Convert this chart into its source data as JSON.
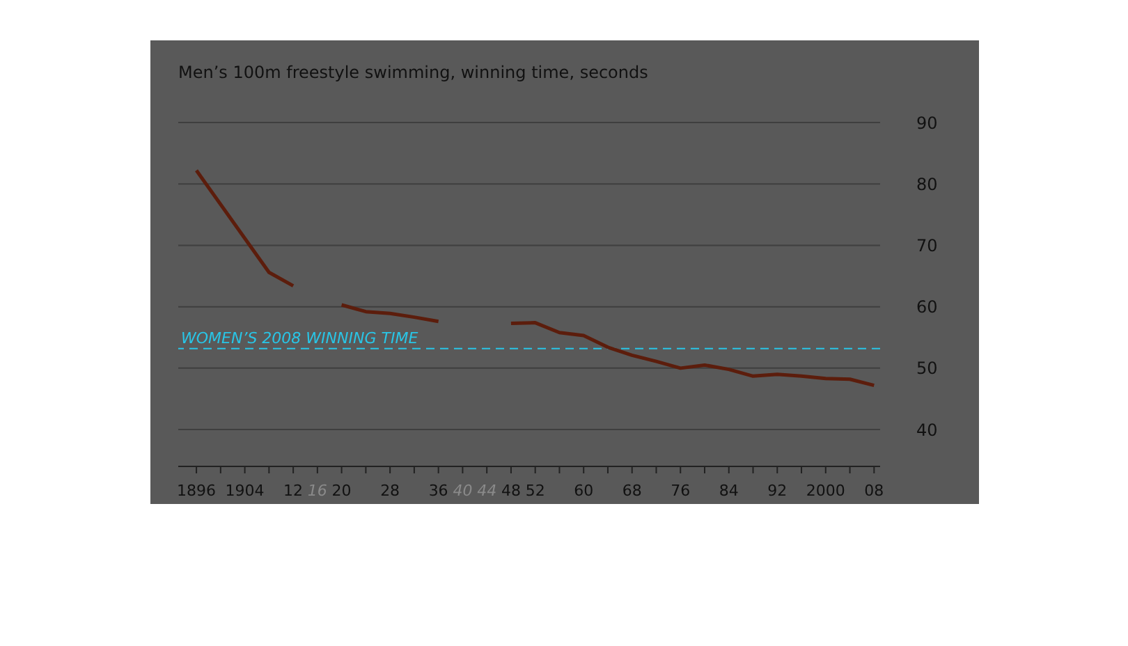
{
  "chart_data": {
    "type": "line",
    "title": "Men’s 100m freestyle swimming, winning time, seconds",
    "x": [
      1896,
      1908,
      1912,
      1916,
      1920,
      1924,
      1928,
      1932,
      1936,
      1940,
      1944,
      1948,
      1952,
      1956,
      1960,
      1964,
      1968,
      1972,
      1976,
      1980,
      1984,
      1988,
      1992,
      1996,
      2000,
      2004,
      2008
    ],
    "series": [
      {
        "color": "#5c1d0c",
        "values": [
          82.2,
          65.6,
          63.4,
          null,
          60.3,
          59.2,
          58.9,
          58.3,
          57.6,
          null,
          null,
          57.3,
          57.4,
          55.8,
          55.3,
          53.4,
          52.1,
          51.1,
          50.0,
          50.5,
          49.8,
          48.7,
          49.0,
          48.7,
          48.3,
          48.2,
          47.2
        ]
      }
    ],
    "xlim": [
      1893,
      2009
    ],
    "xticks": [
      1896,
      {
        "value": 1900,
        "label": null
      },
      1904,
      {
        "value": 1908,
        "label": null
      },
      {
        "value": 1912,
        "label": "12"
      },
      {
        "value": 1916,
        "label": "16"
      },
      {
        "value": 1920,
        "label": "20"
      },
      {
        "value": 1924,
        "label": null
      },
      {
        "value": 1928,
        "label": "28"
      },
      {
        "value": 1932,
        "label": null
      },
      {
        "value": 1936,
        "label": "36"
      },
      {
        "value": 1940,
        "label": "40"
      },
      {
        "value": 1944,
        "label": "44"
      },
      {
        "value": 1948,
        "label": "48"
      },
      {
        "value": 1952,
        "label": "52"
      },
      {
        "value": 1956,
        "label": null
      },
      {
        "value": 1960,
        "label": "60"
      },
      {
        "value": 1964,
        "label": null
      },
      {
        "value": 1968,
        "label": "68"
      },
      {
        "value": 1972,
        "label": null
      },
      {
        "value": 1976,
        "label": "76"
      },
      {
        "value": 1980,
        "label": null
      },
      {
        "value": 1984,
        "label": "84"
      },
      {
        "value": 1988,
        "label": null
      },
      {
        "value": 1992,
        "label": "92"
      },
      {
        "value": 1996,
        "label": null
      },
      2000,
      {
        "value": 2004,
        "label": null
      },
      {
        "value": 2008,
        "label": "08"
      }
    ],
    "ylim": [
      34,
      90
    ],
    "yticks": [
      40,
      50,
      60,
      70,
      80,
      90
    ],
    "grid": "y",
    "marker": "none",
    "line_style": "solid",
    "ref_lines": [
      {
        "axis": "y",
        "value": 53.2,
        "label": "WOMEN’S 2008 WINNING TIME",
        "color": "#29c5e6",
        "line_style": "dashed"
      }
    ]
  }
}
